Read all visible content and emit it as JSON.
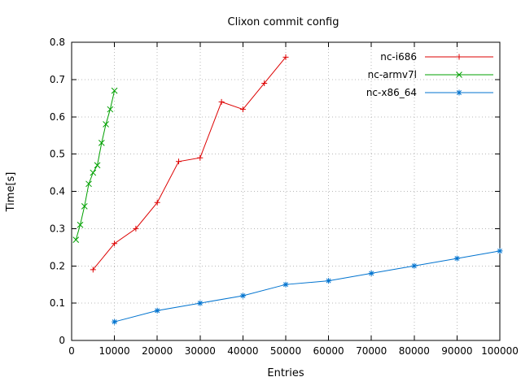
{
  "chart_data": {
    "type": "line",
    "title": "Clixon commit config",
    "xlabel": "Entries",
    "ylabel": "Time[s]",
    "xlim": [
      0,
      100000
    ],
    "ylim": [
      0,
      0.8
    ],
    "grid": true,
    "grid_color": "#b8b8b8",
    "legend_position": "top-right-inside",
    "xticks": [
      0,
      10000,
      20000,
      30000,
      40000,
      50000,
      60000,
      70000,
      80000,
      90000,
      100000
    ],
    "xtick_labels": [
      "0",
      "10000",
      "20000",
      "30000",
      "40000",
      "50000",
      "60000",
      "70000",
      "80000",
      "90000",
      "100000"
    ],
    "yticks": [
      0,
      0.1,
      0.2,
      0.3,
      0.4,
      0.5,
      0.6,
      0.7,
      0.8
    ],
    "ytick_labels": [
      "0",
      "0.1",
      "0.2",
      "0.3",
      "0.4",
      "0.5",
      "0.6",
      "0.7",
      "0.8"
    ],
    "series": [
      {
        "name": "nc-i686",
        "color": "#dd0000",
        "marker": "plus",
        "points": [
          [
            5000,
            0.19
          ],
          [
            10000,
            0.26
          ],
          [
            15000,
            0.3
          ],
          [
            20000,
            0.37
          ],
          [
            25000,
            0.48
          ],
          [
            30000,
            0.49
          ],
          [
            35000,
            0.64
          ],
          [
            40000,
            0.62
          ],
          [
            45000,
            0.69
          ],
          [
            50000,
            0.76
          ]
        ]
      },
      {
        "name": "nc-armv7l",
        "color": "#00a000",
        "marker": "x",
        "points": [
          [
            1000,
            0.27
          ],
          [
            2000,
            0.31
          ],
          [
            3000,
            0.36
          ],
          [
            4000,
            0.42
          ],
          [
            5000,
            0.45
          ],
          [
            6000,
            0.47
          ],
          [
            7000,
            0.53
          ],
          [
            8000,
            0.58
          ],
          [
            9000,
            0.62
          ],
          [
            10000,
            0.67
          ]
        ]
      },
      {
        "name": "nc-x86_64",
        "color": "#0073cf",
        "marker": "asterisk",
        "points": [
          [
            10000,
            0.05
          ],
          [
            20000,
            0.08
          ],
          [
            30000,
            0.1
          ],
          [
            40000,
            0.12
          ],
          [
            50000,
            0.15
          ],
          [
            60000,
            0.16
          ],
          [
            70000,
            0.18
          ],
          [
            80000,
            0.2
          ],
          [
            90000,
            0.22
          ],
          [
            100000,
            0.24
          ]
        ]
      }
    ]
  }
}
